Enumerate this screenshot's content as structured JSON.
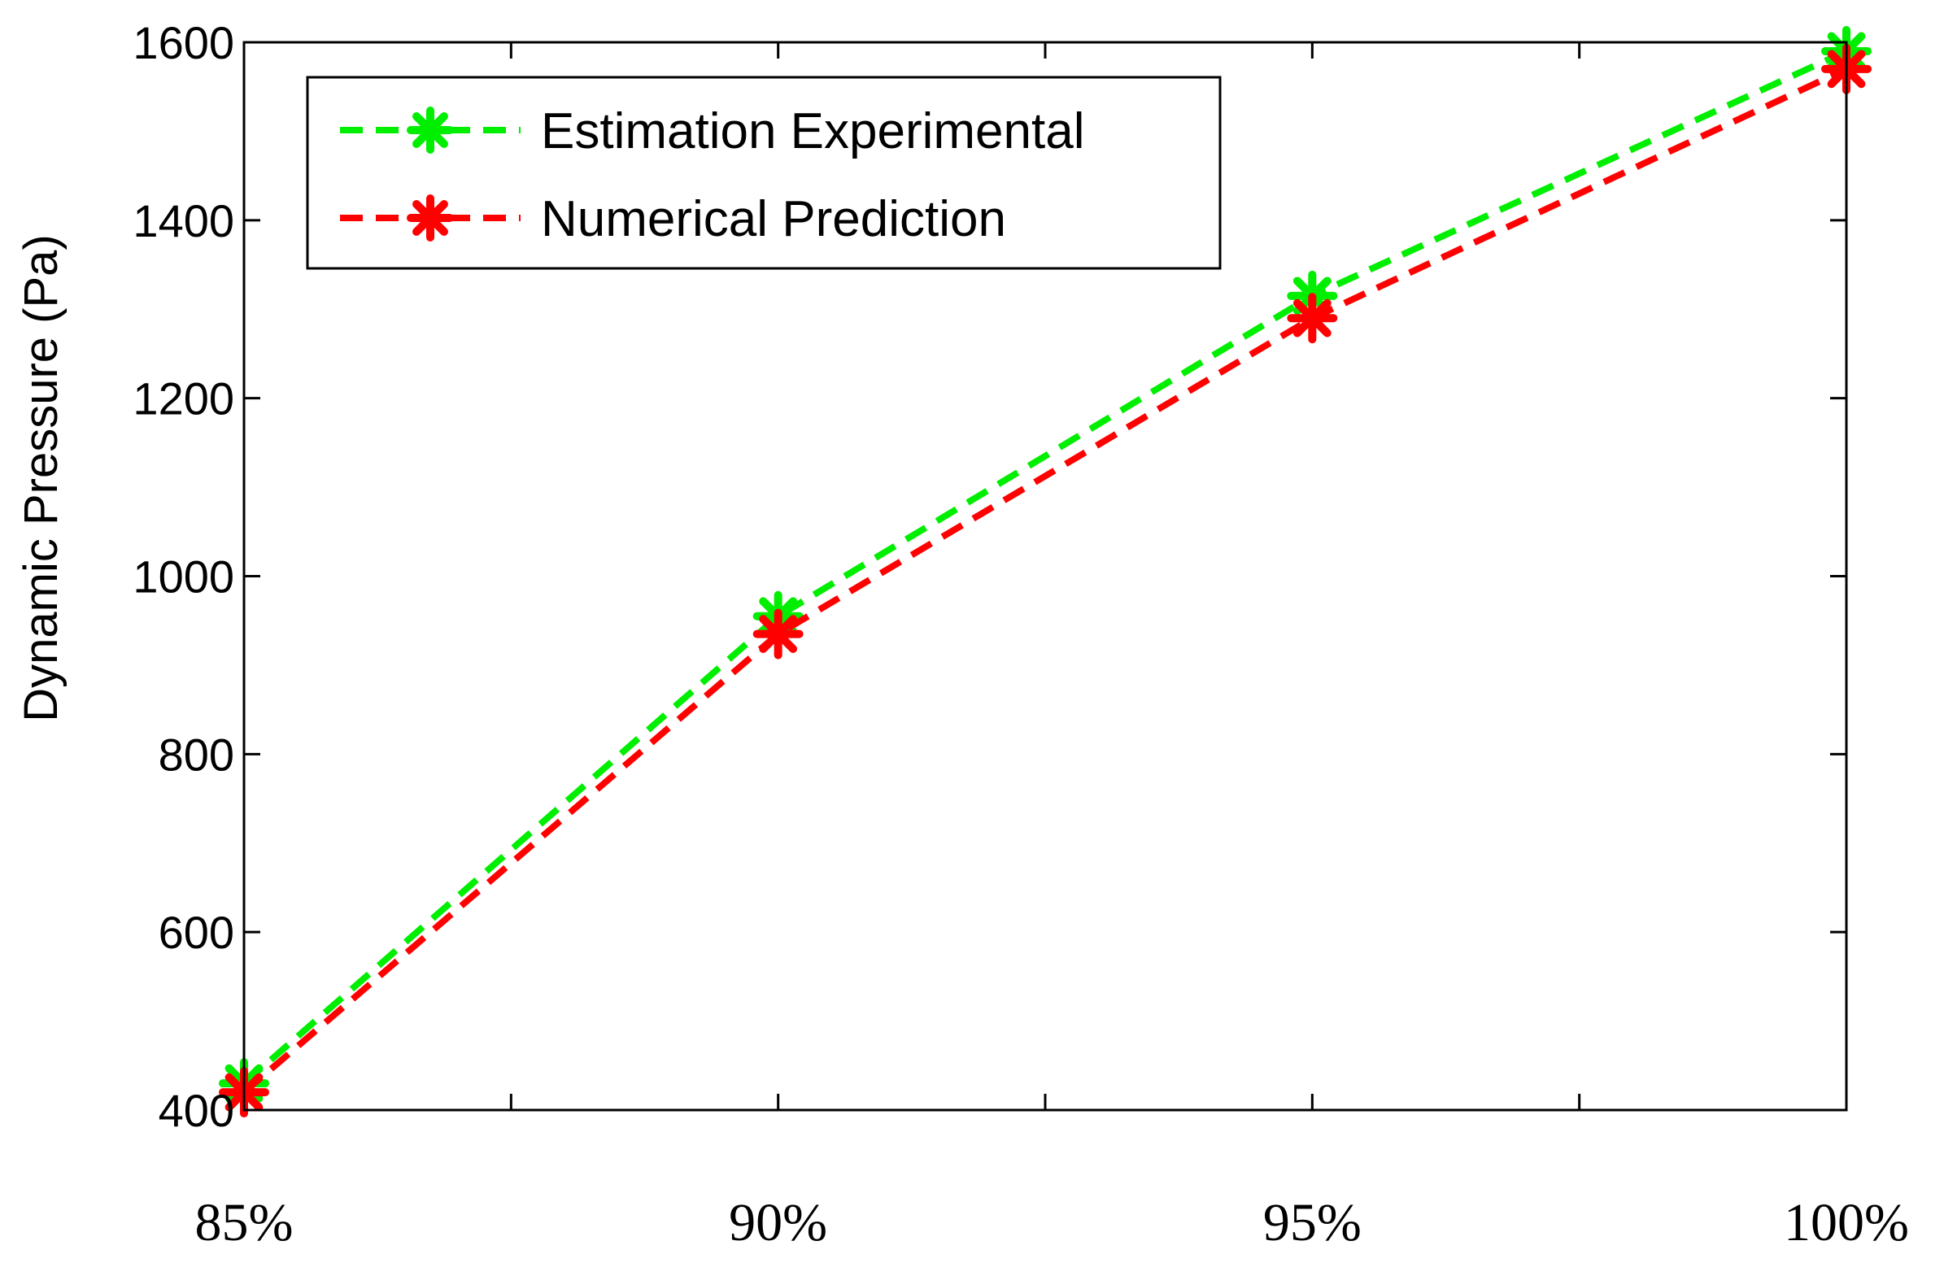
{
  "chart_data": {
    "type": "line",
    "title": "",
    "xlabel": "",
    "ylabel": "Dynamic Pressure (Pa)",
    "categories": [
      "85%",
      "90%",
      "95%",
      "100%"
    ],
    "ylim": [
      400,
      1600
    ],
    "yticks": [
      400,
      600,
      800,
      1000,
      1200,
      1400,
      1600
    ],
    "yticklabels": [
      "400",
      "600",
      "800",
      "1000",
      "1200",
      "1400",
      "1600"
    ],
    "grid": false,
    "legend_position": "top-left",
    "series": [
      {
        "name": "Estimation Experimental",
        "color": "#00ee00",
        "line_style": "dashed",
        "marker": "asterisk",
        "values": [
          430,
          955,
          1315,
          1590
        ]
      },
      {
        "name": "Numerical Prediction",
        "color": "#ff0000",
        "line_style": "dashed",
        "marker": "asterisk",
        "values": [
          420,
          935,
          1290,
          1570
        ]
      }
    ]
  }
}
